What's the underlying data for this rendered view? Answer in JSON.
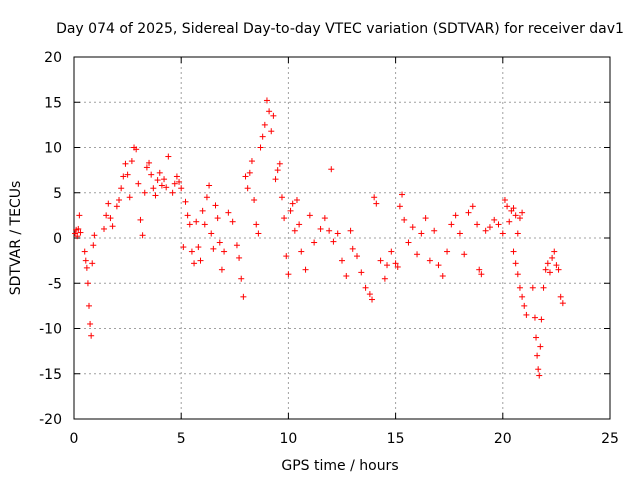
{
  "chart_data": {
    "type": "scatter",
    "title": "Day 074 of 2025, Sidereal Day-to-day VTEC variation (SDTVAR) for receiver dav1",
    "xlabel": "GPS time / hours",
    "ylabel": "SDTVAR / TECUs",
    "xlim": [
      0,
      25
    ],
    "ylim": [
      -20,
      20
    ],
    "xticks": [
      0,
      5,
      10,
      15,
      20,
      25
    ],
    "yticks": [
      -20,
      -15,
      -10,
      -5,
      0,
      5,
      10,
      15,
      20
    ],
    "grid": true,
    "marker": "+",
    "color": "#ff0000",
    "series": [
      {
        "name": "SDTVAR",
        "points": [
          [
            0.05,
            0.5
          ],
          [
            0.1,
            0.9
          ],
          [
            0.15,
            0.2
          ],
          [
            0.2,
            1.0
          ],
          [
            0.25,
            2.5
          ],
          [
            0.3,
            0.6
          ],
          [
            0.5,
            -1.5
          ],
          [
            0.55,
            -2.5
          ],
          [
            0.6,
            -3.3
          ],
          [
            0.65,
            -5.0
          ],
          [
            0.7,
            -7.5
          ],
          [
            0.75,
            -9.5
          ],
          [
            0.8,
            -10.8
          ],
          [
            0.85,
            -2.8
          ],
          [
            0.9,
            -0.8
          ],
          [
            0.95,
            0.3
          ],
          [
            1.4,
            1.0
          ],
          [
            1.5,
            2.5
          ],
          [
            1.6,
            3.8
          ],
          [
            1.7,
            2.2
          ],
          [
            1.8,
            1.3
          ],
          [
            2.0,
            3.5
          ],
          [
            2.1,
            4.2
          ],
          [
            2.2,
            5.5
          ],
          [
            2.3,
            6.8
          ],
          [
            2.4,
            8.2
          ],
          [
            2.5,
            7.0
          ],
          [
            2.6,
            4.5
          ],
          [
            2.7,
            8.5
          ],
          [
            2.8,
            10.0
          ],
          [
            2.9,
            9.8
          ],
          [
            3.0,
            6.0
          ],
          [
            3.1,
            2.0
          ],
          [
            3.2,
            0.3
          ],
          [
            3.3,
            5.0
          ],
          [
            3.4,
            7.8
          ],
          [
            3.5,
            8.3
          ],
          [
            3.6,
            7.0
          ],
          [
            3.7,
            5.5
          ],
          [
            3.8,
            4.7
          ],
          [
            3.9,
            6.4
          ],
          [
            4.0,
            7.2
          ],
          [
            4.1,
            5.8
          ],
          [
            4.2,
            6.5
          ],
          [
            4.3,
            5.6
          ],
          [
            4.4,
            9.0
          ],
          [
            4.6,
            5.0
          ],
          [
            4.7,
            6.0
          ],
          [
            4.8,
            6.8
          ],
          [
            4.9,
            6.2
          ],
          [
            5.0,
            5.5
          ],
          [
            5.1,
            -1.0
          ],
          [
            5.2,
            4.0
          ],
          [
            5.3,
            2.5
          ],
          [
            5.4,
            1.5
          ],
          [
            5.5,
            -1.5
          ],
          [
            5.6,
            -2.8
          ],
          [
            5.7,
            1.8
          ],
          [
            5.8,
            -1.0
          ],
          [
            5.9,
            -2.5
          ],
          [
            6.0,
            3.0
          ],
          [
            6.1,
            1.5
          ],
          [
            6.2,
            4.5
          ],
          [
            6.3,
            5.8
          ],
          [
            6.4,
            0.5
          ],
          [
            6.5,
            -1.2
          ],
          [
            6.6,
            3.6
          ],
          [
            6.7,
            2.2
          ],
          [
            6.8,
            -0.5
          ],
          [
            6.9,
            -3.5
          ],
          [
            7.0,
            -1.5
          ],
          [
            7.2,
            2.8
          ],
          [
            7.4,
            1.8
          ],
          [
            7.6,
            -0.8
          ],
          [
            7.7,
            -2.2
          ],
          [
            7.8,
            -4.5
          ],
          [
            7.9,
            -6.5
          ],
          [
            8.0,
            6.8
          ],
          [
            8.1,
            5.5
          ],
          [
            8.2,
            7.2
          ],
          [
            8.3,
            8.5
          ],
          [
            8.4,
            4.2
          ],
          [
            8.5,
            1.5
          ],
          [
            8.6,
            0.5
          ],
          [
            8.7,
            10.0
          ],
          [
            8.8,
            11.2
          ],
          [
            8.9,
            12.5
          ],
          [
            9.0,
            15.2
          ],
          [
            9.1,
            14.0
          ],
          [
            9.2,
            11.8
          ],
          [
            9.3,
            13.5
          ],
          [
            9.4,
            6.5
          ],
          [
            9.5,
            7.5
          ],
          [
            9.6,
            8.2
          ],
          [
            9.7,
            4.5
          ],
          [
            9.8,
            2.2
          ],
          [
            9.9,
            -2.0
          ],
          [
            10.0,
            -4.0
          ],
          [
            10.1,
            3.0
          ],
          [
            10.2,
            3.8
          ],
          [
            10.3,
            0.8
          ],
          [
            10.4,
            4.2
          ],
          [
            10.5,
            1.5
          ],
          [
            10.6,
            -1.5
          ],
          [
            10.8,
            -3.5
          ],
          [
            11.0,
            2.5
          ],
          [
            11.2,
            -0.5
          ],
          [
            11.5,
            1.0
          ],
          [
            11.7,
            2.2
          ],
          [
            11.9,
            0.8
          ],
          [
            12.0,
            7.6
          ],
          [
            12.1,
            -0.4
          ],
          [
            12.3,
            0.5
          ],
          [
            12.5,
            -2.5
          ],
          [
            12.7,
            -4.2
          ],
          [
            12.9,
            0.8
          ],
          [
            13.0,
            -1.2
          ],
          [
            13.2,
            -2.0
          ],
          [
            13.4,
            -3.8
          ],
          [
            13.6,
            -5.5
          ],
          [
            13.8,
            -6.2
          ],
          [
            13.9,
            -6.8
          ],
          [
            14.0,
            4.5
          ],
          [
            14.1,
            3.8
          ],
          [
            14.3,
            -2.5
          ],
          [
            14.5,
            -4.5
          ],
          [
            14.6,
            -3.0
          ],
          [
            14.8,
            -1.5
          ],
          [
            15.0,
            -2.8
          ],
          [
            15.1,
            -3.2
          ],
          [
            15.2,
            3.5
          ],
          [
            15.3,
            4.8
          ],
          [
            15.4,
            2.0
          ],
          [
            15.6,
            -0.5
          ],
          [
            15.8,
            1.2
          ],
          [
            16.0,
            -1.8
          ],
          [
            16.2,
            0.5
          ],
          [
            16.4,
            2.2
          ],
          [
            16.6,
            -2.5
          ],
          [
            16.8,
            0.8
          ],
          [
            17.0,
            -3.0
          ],
          [
            17.2,
            -4.2
          ],
          [
            17.4,
            -1.5
          ],
          [
            17.6,
            1.5
          ],
          [
            17.8,
            2.5
          ],
          [
            18.0,
            0.5
          ],
          [
            18.2,
            -1.8
          ],
          [
            18.4,
            2.8
          ],
          [
            18.6,
            3.5
          ],
          [
            18.8,
            1.5
          ],
          [
            18.9,
            -3.5
          ],
          [
            19.0,
            -4.0
          ],
          [
            19.2,
            0.8
          ],
          [
            19.4,
            1.2
          ],
          [
            19.6,
            2.0
          ],
          [
            19.8,
            1.5
          ],
          [
            20.0,
            0.5
          ],
          [
            20.1,
            4.2
          ],
          [
            20.2,
            3.5
          ],
          [
            20.3,
            1.8
          ],
          [
            20.4,
            3.0
          ],
          [
            20.5,
            3.3
          ],
          [
            20.6,
            2.5
          ],
          [
            20.7,
            0.5
          ],
          [
            20.8,
            2.2
          ],
          [
            20.9,
            2.8
          ],
          [
            20.5,
            -1.5
          ],
          [
            20.6,
            -2.8
          ],
          [
            20.7,
            -4.0
          ],
          [
            20.8,
            -5.5
          ],
          [
            20.9,
            -6.5
          ],
          [
            21.0,
            -7.5
          ],
          [
            21.1,
            -8.5
          ],
          [
            21.4,
            -5.5
          ],
          [
            21.5,
            -8.8
          ],
          [
            21.55,
            -11.0
          ],
          [
            21.6,
            -13.0
          ],
          [
            21.65,
            -14.5
          ],
          [
            21.7,
            -15.2
          ],
          [
            21.75,
            -12.0
          ],
          [
            21.8,
            -9.0
          ],
          [
            21.9,
            -5.5
          ],
          [
            22.0,
            -3.5
          ],
          [
            22.1,
            -2.8
          ],
          [
            22.2,
            -3.8
          ],
          [
            22.3,
            -2.2
          ],
          [
            22.4,
            -1.5
          ],
          [
            22.5,
            -3.0
          ],
          [
            22.6,
            -3.5
          ],
          [
            22.7,
            -6.5
          ],
          [
            22.8,
            -7.2
          ]
        ]
      }
    ]
  }
}
